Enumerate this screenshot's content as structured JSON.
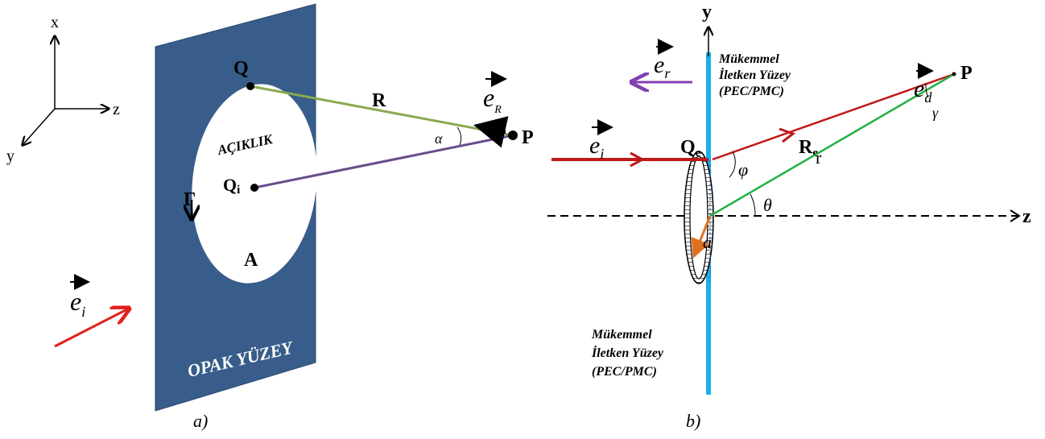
{
  "panel_a": {
    "caption": "a)",
    "axes": {
      "x": "x",
      "y": "y",
      "z": "z"
    },
    "labels": {
      "Q": "Q",
      "R": "R",
      "P": "P",
      "aperture": "AÇIKLIK",
      "alpha": "α",
      "Qi": {
        "base": "Q",
        "sub": "i"
      },
      "gamma": "Γ",
      "A": "A",
      "surface": "OPAK YÜZEY"
    },
    "vectors": {
      "eR": {
        "base": "e",
        "sub": "R"
      },
      "ei": {
        "base": "e",
        "sub": "i"
      }
    }
  },
  "panel_b": {
    "caption": "b)",
    "axes": {
      "y": "y",
      "z": "z"
    },
    "top_note": [
      "Mükemmel",
      "İletken Yüzey",
      "(PEC/PMC)"
    ],
    "bottom_note": [
      "Mükemmel",
      "İletken Yüzey",
      "(PEC/PMC)"
    ],
    "vectors": {
      "er": {
        "base": "e",
        "sub": "r"
      },
      "ed": {
        "base": "e",
        "sub": "d"
      },
      "ei": {
        "base": "e",
        "sub": "i"
      }
    },
    "labels": {
      "P": "P",
      "gamma": "γ",
      "Qe": {
        "base": "Q",
        "sub": "e"
      },
      "Re": {
        "base": "R",
        "sub": "e"
      },
      "r": "r",
      "phi": "φ",
      "theta": "θ",
      "a": "a"
    }
  }
}
